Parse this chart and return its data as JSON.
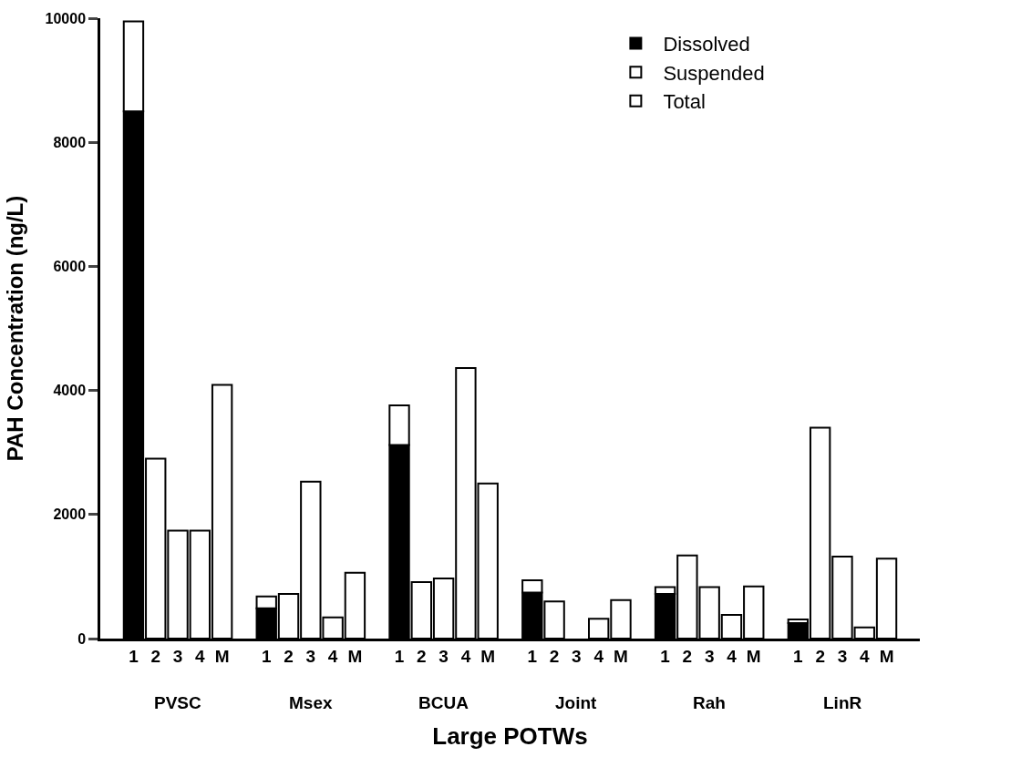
{
  "chart_data": {
    "type": "bar",
    "stacked": true,
    "categories": [
      null,
      "1",
      "2",
      "3",
      "4",
      "M",
      null,
      "1",
      "2",
      "3",
      "4",
      "M",
      null,
      "1",
      "2",
      "3",
      "4",
      "M",
      null,
      "1",
      "2",
      "3",
      "4",
      "M",
      null,
      "1",
      "2",
      "3",
      "4",
      "M",
      null,
      "1",
      "2",
      "3",
      "4",
      "M",
      null
    ],
    "series": [
      {
        "name": "Dissolved",
        "color": "#000000",
        "values": [
          null,
          8500,
          null,
          null,
          null,
          null,
          null,
          490,
          null,
          null,
          null,
          null,
          null,
          3120,
          null,
          null,
          null,
          null,
          null,
          740,
          null,
          null,
          null,
          null,
          null,
          720,
          null,
          null,
          null,
          null,
          null,
          250,
          null,
          null,
          null,
          null,
          null
        ]
      },
      {
        "name": "Suspended",
        "color": "#ffffff",
        "values": [
          null,
          1450,
          null,
          null,
          null,
          null,
          null,
          190,
          null,
          null,
          null,
          null,
          null,
          640,
          null,
          null,
          null,
          null,
          null,
          200,
          null,
          null,
          null,
          null,
          null,
          110,
          null,
          null,
          null,
          null,
          null,
          60,
          null,
          null,
          null,
          null,
          null
        ]
      },
      {
        "name": "Total",
        "color": "#ffffff",
        "values": [
          null,
          null,
          2900,
          1740,
          1740,
          null,
          null,
          null,
          720,
          2530,
          340,
          null,
          null,
          null,
          910,
          970,
          4360,
          null,
          null,
          null,
          600,
          null,
          320,
          null,
          null,
          null,
          1340,
          830,
          380,
          null,
          null,
          null,
          3400,
          1320,
          180,
          null,
          null
        ]
      },
      {
        "color": "#ffffff",
        "values": [
          null,
          null,
          null,
          null,
          null,
          4090,
          null,
          null,
          null,
          null,
          null,
          1060,
          null,
          null,
          null,
          null,
          null,
          2500,
          null,
          null,
          null,
          null,
          null,
          620,
          null,
          null,
          null,
          null,
          null,
          840,
          null,
          null,
          null,
          null,
          null,
          1290,
          null
        ]
      }
    ],
    "annotations": [
      "PVSC",
      "Msex",
      "BCUA",
      "Joint",
      "Rah",
      "LinR"
    ],
    "xlabel": "Large POTWs",
    "ylabel": "PAH Concentration (ng/L)",
    "ylim": [
      0,
      10000
    ],
    "yticks": [
      0,
      2000,
      4000,
      6000,
      8000,
      10000
    ],
    "legend": "top right"
  }
}
